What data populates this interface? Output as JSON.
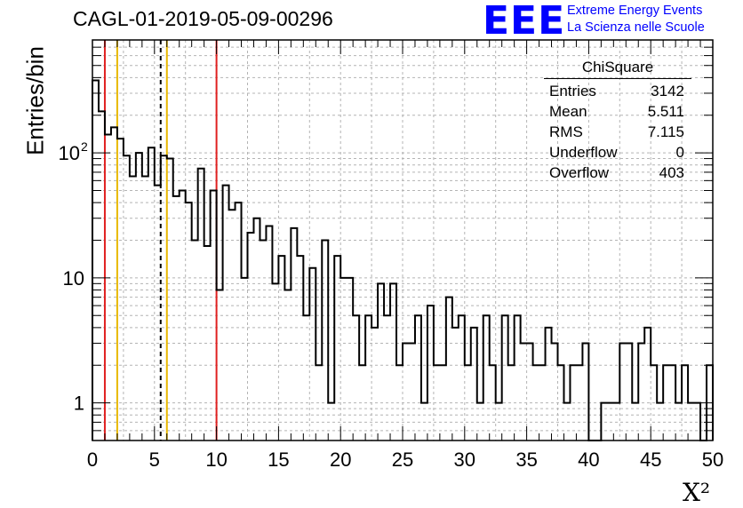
{
  "title": "CAGL-01-2019-05-09-00296",
  "logo": {
    "mark": "EEE",
    "line1": "Extreme Energy Events",
    "line2": "La Scienza nelle Scuole"
  },
  "stats": {
    "name": "ChiSquare",
    "rows": [
      {
        "label": "Entries",
        "value": "3142"
      },
      {
        "label": "Mean",
        "value": "5.511"
      },
      {
        "label": "RMS",
        "value": "7.115"
      },
      {
        "label": "Underflow",
        "value": "0"
      },
      {
        "label": "Overflow",
        "value": "403"
      }
    ]
  },
  "chart_data": {
    "type": "bar",
    "style": "step histogram",
    "ylabel": "Entries/bin",
    "xlabel": "X²",
    "xlim": [
      0,
      50
    ],
    "ylim": [
      0.5,
      800
    ],
    "yscale": "log",
    "bin_width": 0.5,
    "grid": true,
    "x_ticks": [
      "0",
      "5",
      "10",
      "15",
      "20",
      "25",
      "30",
      "35",
      "40",
      "45",
      "50"
    ],
    "y_ticks": [
      {
        "value": 1,
        "base": "1",
        "exp": ""
      },
      {
        "value": 10,
        "base": "10",
        "exp": ""
      },
      {
        "value": 100,
        "base": "10",
        "exp": "2"
      }
    ],
    "values": [
      380,
      215,
      140,
      160,
      130,
      95,
      65,
      100,
      65,
      110,
      55,
      95,
      90,
      45,
      50,
      40,
      20,
      75,
      18,
      50,
      8,
      55,
      35,
      40,
      10,
      23,
      30,
      20,
      26,
      9,
      15,
      8,
      25,
      15,
      5,
      12,
      2,
      20,
      1,
      15,
      10,
      10,
      5,
      2,
      5,
      4,
      9,
      5,
      9,
      2,
      3,
      3,
      5,
      1,
      6,
      2,
      2,
      7,
      4,
      5,
      2,
      4,
      1,
      5,
      2,
      1,
      5,
      2,
      5,
      3,
      3,
      2,
      2,
      4,
      3,
      2,
      1,
      2,
      2,
      3,
      0,
      0,
      1,
      1,
      1,
      3,
      3,
      1,
      3,
      4,
      2,
      1,
      2,
      2,
      1,
      2,
      1,
      1,
      0,
      2
    ],
    "vertical_lines": [
      {
        "x": 1,
        "color": "#e02020",
        "style": "solid"
      },
      {
        "x": 2,
        "color": "#e8b800",
        "style": "solid"
      },
      {
        "x": 5.5,
        "color": "#000000",
        "style": "dashed"
      },
      {
        "x": 6,
        "color": "#e8b800",
        "style": "solid"
      },
      {
        "x": 10,
        "color": "#e02020",
        "style": "solid"
      }
    ]
  }
}
